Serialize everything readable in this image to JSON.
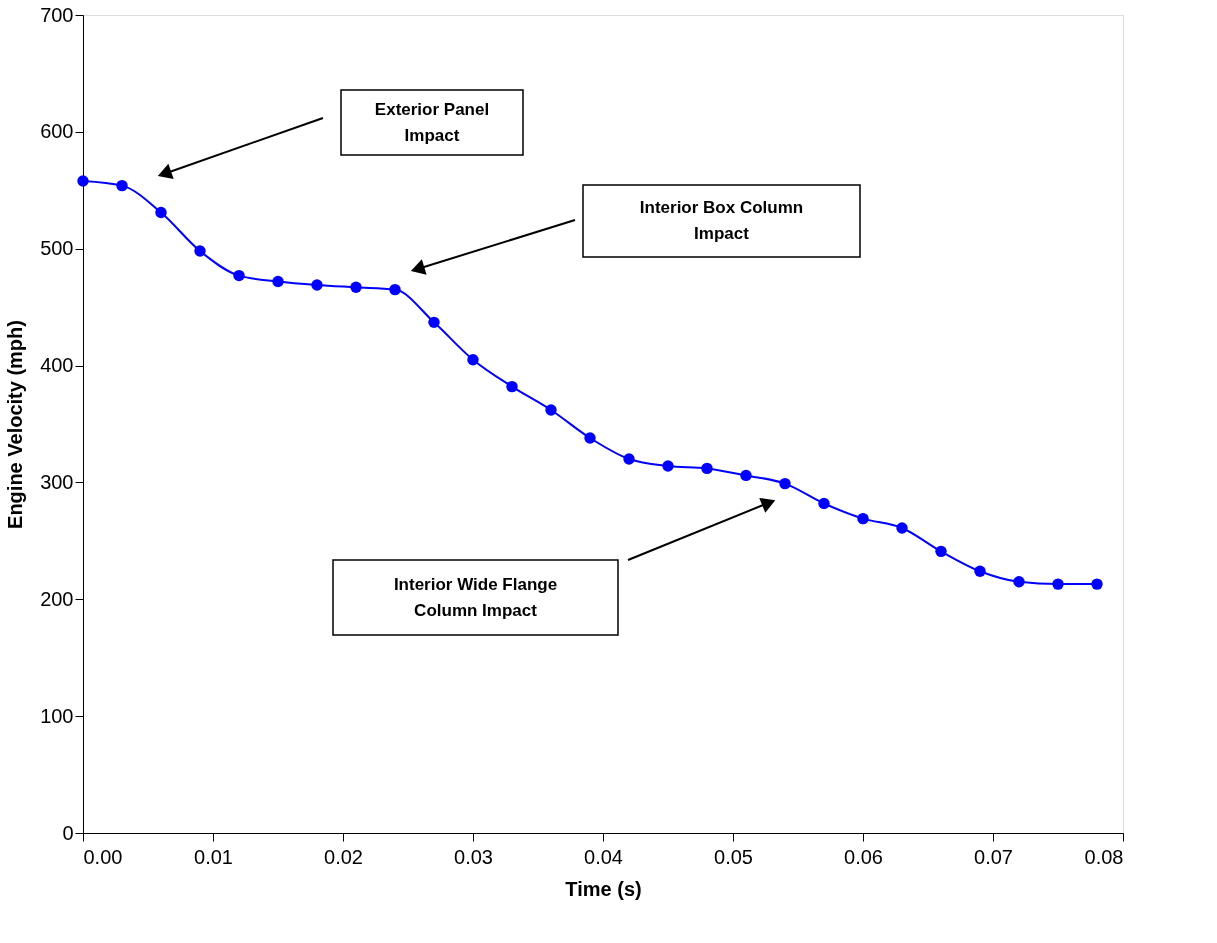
{
  "chart_data": {
    "type": "line",
    "xlabel": "Time  (s)",
    "ylabel": "Engine Velocity (mph)",
    "x": [
      0,
      0.003,
      0.006,
      0.009,
      0.012,
      0.015,
      0.018,
      0.021,
      0.024,
      0.027,
      0.03,
      0.033,
      0.036,
      0.039,
      0.042,
      0.045,
      0.048,
      0.051,
      0.054,
      0.057,
      0.06,
      0.063,
      0.066,
      0.069,
      0.072,
      0.075,
      0.078
    ],
    "series": [
      {
        "color": "#0000ff",
        "values": [
          558,
          554,
          531,
          498,
          477,
          472,
          469,
          467,
          465,
          437,
          405,
          382,
          362,
          338,
          320,
          314,
          312,
          306,
          299,
          282,
          269,
          261,
          241,
          224,
          215,
          213,
          213
        ]
      }
    ],
    "xlim": [
      0,
      0.08
    ],
    "xticks": [
      {
        "value": 0,
        "label": "0.00"
      },
      {
        "value": 0.01,
        "label": "0.01"
      },
      {
        "value": 0.02,
        "label": "0.02"
      },
      {
        "value": 0.03,
        "label": "0.03"
      },
      {
        "value": 0.04,
        "label": "0.04"
      },
      {
        "value": 0.05,
        "label": "0.05"
      },
      {
        "value": 0.06,
        "label": "0.06"
      },
      {
        "value": 0.07,
        "label": "0.07"
      },
      {
        "value": 0.08,
        "label": "0.08"
      }
    ],
    "ylim": [
      0,
      700
    ],
    "yticks": [
      0,
      100,
      200,
      300,
      400,
      500,
      600,
      700
    ],
    "annotations": [
      "Exterior Panel\nImpact",
      "Interior Box Column\nImpact",
      "Interior Wide Flange\nColumn Impact"
    ],
    "marker": "circle",
    "line_style": "solid",
    "grid": false,
    "legend": false
  }
}
